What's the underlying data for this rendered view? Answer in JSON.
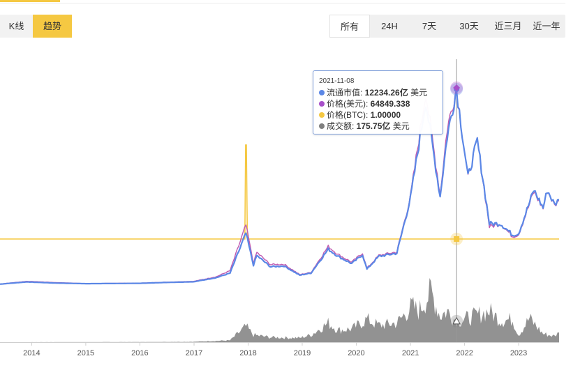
{
  "toolbar": {
    "view_toggle": [
      {
        "label": "K线",
        "active": false
      },
      {
        "label": "趋势",
        "active": true
      }
    ],
    "ranges": [
      {
        "label": "所有",
        "active": true
      },
      {
        "label": "24H",
        "active": false
      },
      {
        "label": "7天",
        "active": false
      },
      {
        "label": "30天",
        "active": false
      },
      {
        "label": "近三月",
        "active": false
      },
      {
        "label": "近一年",
        "active": false
      }
    ]
  },
  "colors": {
    "market_cap": "#5b87e6",
    "price_usd": "#a74fc9",
    "price_btc": "#f5c842",
    "volume": "#7f7f7f",
    "accent": "#f5c842"
  },
  "tooltip": {
    "date": "2021-11-08",
    "rows": [
      {
        "label": "流通市值: ",
        "value": "12234.26亿",
        "unit": " 美元"
      },
      {
        "label": "价格(美元): ",
        "value": "64849.338",
        "unit": ""
      },
      {
        "label": "价格(BTC): ",
        "value": "1.00000",
        "unit": ""
      },
      {
        "label": "成交额: ",
        "value": "175.75亿",
        "unit": " 美元"
      }
    ]
  },
  "chart_data": {
    "type": "line",
    "title": "",
    "xlabel": "",
    "ylabel": "",
    "x_ticks": [
      "2014",
      "2015",
      "2016",
      "2017",
      "2018",
      "2019",
      "2020",
      "2021",
      "2022",
      "2023"
    ],
    "grid": false,
    "legend": "none",
    "hover_date": "2021-11-08",
    "series": [
      {
        "name": "流通市值",
        "unit": "亿美元",
        "points": [
          [
            "2013-06-01",
            10
          ],
          [
            "2013-12-01",
            150
          ],
          [
            "2014-06-01",
            80
          ],
          [
            "2015-01-01",
            40
          ],
          [
            "2016-01-01",
            60
          ],
          [
            "2016-06-01",
            110
          ],
          [
            "2017-01-01",
            160
          ],
          [
            "2017-06-01",
            420
          ],
          [
            "2017-09-01",
            700
          ],
          [
            "2017-12-17",
            3200
          ],
          [
            "2018-02-06",
            1200
          ],
          [
            "2018-03-01",
            1800
          ],
          [
            "2018-06-01",
            1100
          ],
          [
            "2018-09-01",
            1150
          ],
          [
            "2018-12-15",
            570
          ],
          [
            "2019-03-01",
            700
          ],
          [
            "2019-06-26",
            2200
          ],
          [
            "2019-09-01",
            1750
          ],
          [
            "2019-12-01",
            1300
          ],
          [
            "2020-02-12",
            1850
          ],
          [
            "2020-03-13",
            950
          ],
          [
            "2020-06-01",
            1750
          ],
          [
            "2020-10-01",
            1950
          ],
          [
            "2021-01-01",
            5400
          ],
          [
            "2021-04-14",
            11500
          ],
          [
            "2021-07-20",
            5500
          ],
          [
            "2021-09-06",
            9300
          ],
          [
            "2021-11-08",
            12234
          ],
          [
            "2022-01-24",
            6700
          ],
          [
            "2022-03-28",
            9000
          ],
          [
            "2022-06-18",
            3800
          ],
          [
            "2022-09-01",
            3800
          ],
          [
            "2022-11-21",
            3100
          ],
          [
            "2023-01-01",
            3200
          ],
          [
            "2023-04-14",
            5900
          ],
          [
            "2023-06-15",
            4800
          ],
          [
            "2023-07-14",
            5900
          ],
          [
            "2023-08-31",
            5000
          ],
          [
            "2023-10-01",
            5300
          ]
        ]
      },
      {
        "name": "价格(美元)",
        "unit": "美元",
        "points": [
          [
            "2013-06-01",
            100
          ],
          [
            "2013-12-01",
            1000
          ],
          [
            "2014-06-01",
            600
          ],
          [
            "2015-01-01",
            250
          ],
          [
            "2016-01-01",
            400
          ],
          [
            "2016-06-01",
            650
          ],
          [
            "2017-01-01",
            1000
          ],
          [
            "2017-06-01",
            2500
          ],
          [
            "2017-09-01",
            4500
          ],
          [
            "2017-12-17",
            19500
          ],
          [
            "2018-02-06",
            7000
          ],
          [
            "2018-03-01",
            10500
          ],
          [
            "2018-06-01",
            6500
          ],
          [
            "2018-09-01",
            6600
          ],
          [
            "2018-12-15",
            3200
          ],
          [
            "2019-03-01",
            3900
          ],
          [
            "2019-06-26",
            12500
          ],
          [
            "2019-09-01",
            9800
          ],
          [
            "2019-12-01",
            7300
          ],
          [
            "2020-02-12",
            10300
          ],
          [
            "2020-03-13",
            5300
          ],
          [
            "2020-06-01",
            9500
          ],
          [
            "2020-10-01",
            10700
          ],
          [
            "2021-01-01",
            29000
          ],
          [
            "2021-04-14",
            63500
          ],
          [
            "2021-07-20",
            29800
          ],
          [
            "2021-09-06",
            51500
          ],
          [
            "2021-11-08",
            64849.338
          ],
          [
            "2022-01-24",
            35000
          ],
          [
            "2022-03-28",
            47500
          ],
          [
            "2022-06-18",
            19000
          ],
          [
            "2022-09-01",
            20000
          ],
          [
            "2022-11-21",
            15800
          ],
          [
            "2023-01-01",
            16500
          ],
          [
            "2023-04-14",
            30500
          ],
          [
            "2023-06-15",
            25000
          ],
          [
            "2023-07-14",
            31000
          ],
          [
            "2023-08-31",
            26000
          ],
          [
            "2023-10-01",
            27500
          ]
        ]
      },
      {
        "name": "价格(BTC)",
        "unit": "BTC",
        "points": [
          [
            "2013-06-01",
            1.0
          ],
          [
            "2017-12-10",
            1.0
          ],
          [
            "2017-12-15",
            6.0
          ],
          [
            "2017-12-20",
            6.0
          ],
          [
            "2017-12-27",
            1.0
          ],
          [
            "2023-10-01",
            1.0
          ]
        ]
      },
      {
        "name": "成交额",
        "unit": "亿美元",
        "points": [
          [
            "2013-06-01",
            0
          ],
          [
            "2016-01-01",
            1
          ],
          [
            "2017-01-01",
            3
          ],
          [
            "2017-09-01",
            15
          ],
          [
            "2017-12-17",
            130
          ],
          [
            "2018-02-06",
            60
          ],
          [
            "2018-06-01",
            40
          ],
          [
            "2018-12-15",
            35
          ],
          [
            "2019-03-01",
            60
          ],
          [
            "2019-06-26",
            160
          ],
          [
            "2019-09-01",
            100
          ],
          [
            "2019-12-01",
            110
          ],
          [
            "2020-03-13",
            190
          ],
          [
            "2020-06-01",
            140
          ],
          [
            "2020-10-01",
            160
          ],
          [
            "2021-01-11",
            300
          ],
          [
            "2021-02-24",
            260
          ],
          [
            "2021-05-19",
            420
          ],
          [
            "2021-07-20",
            220
          ],
          [
            "2021-09-06",
            260
          ],
          [
            "2021-11-08",
            175.75
          ],
          [
            "2022-01-24",
            200
          ],
          [
            "2022-06-18",
            260
          ],
          [
            "2022-09-01",
            180
          ],
          [
            "2022-11-21",
            190
          ],
          [
            "2023-01-01",
            60
          ],
          [
            "2023-03-15",
            200
          ],
          [
            "2023-06-15",
            70
          ],
          [
            "2023-08-31",
            50
          ],
          [
            "2023-10-01",
            80
          ]
        ]
      }
    ]
  }
}
